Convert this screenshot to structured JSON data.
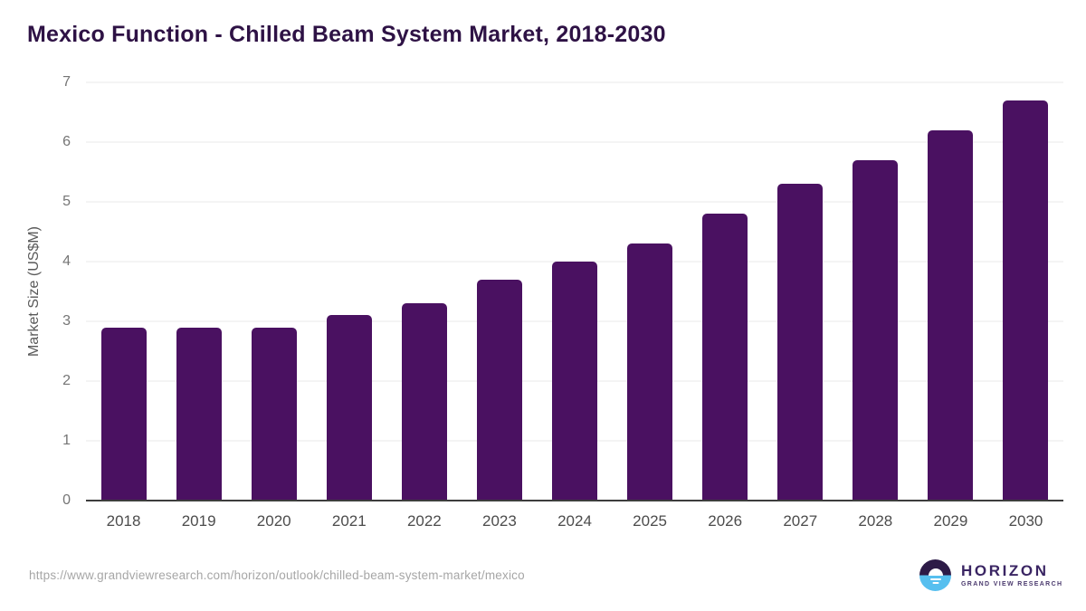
{
  "page": {
    "title": "Mexico Function - Chilled Beam System Market, 2018-2030"
  },
  "chart_data": {
    "type": "bar",
    "title": "Mexico Function - Chilled Beam System Market, 2018-2030",
    "categories": [
      "2018",
      "2019",
      "2020",
      "2021",
      "2022",
      "2023",
      "2024",
      "2025",
      "2026",
      "2027",
      "2028",
      "2029",
      "2030"
    ],
    "values": [
      2.9,
      2.9,
      2.9,
      3.1,
      3.3,
      3.7,
      4.0,
      4.3,
      4.8,
      5.3,
      5.7,
      6.2,
      6.7
    ],
    "xlabel": "",
    "ylabel": "Market Size (US$M)",
    "ylim": [
      0,
      7
    ],
    "yticks": [
      0,
      1,
      2,
      3,
      4,
      5,
      6,
      7
    ],
    "grid": "horizontal",
    "legend": "none",
    "bar_color": "#4a1161"
  },
  "footer": {
    "source_url": "https://www.grandviewresearch.com/horizon/outlook/chilled-beam-system-market/mexico",
    "logo": {
      "brand": "HORIZON",
      "tagline": "GRAND VIEW RESEARCH"
    }
  },
  "colors": {
    "bar": "#4a1161",
    "title_text": "#2e1245",
    "gridline": "#e8e8e8",
    "axis_line": "#3d3d3d",
    "y_tick_text": "#757575",
    "x_tick_text": "#4c4c4c",
    "url_text": "#a6a6a6",
    "logo_top": "#2d1b47",
    "logo_bottom": "#56bfef",
    "logo_text": "#3a2563"
  }
}
